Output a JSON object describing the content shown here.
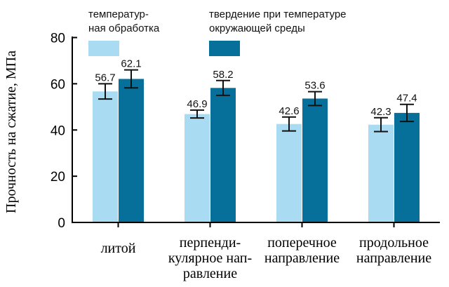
{
  "chart_data": {
    "type": "bar",
    "xlabel": "",
    "ylabel": "Прочность на сжатие, МПа",
    "ylim": [
      0,
      80
    ],
    "yticks": [
      0,
      20,
      40,
      60,
      80
    ],
    "grid": false,
    "legend_position": "top",
    "categories": [
      [
        "литой"
      ],
      [
        "перпенди-",
        "кулярное нап-",
        "равление"
      ],
      [
        "поперечное",
        "направление"
      ],
      [
        "продольное",
        "направление"
      ]
    ],
    "series": [
      {
        "name_lines": [
          "температур-",
          "ная обработка"
        ],
        "color": "#a9dcf3",
        "values": [
          56.7,
          46.9,
          42.6,
          42.3
        ],
        "labels": [
          "56.7",
          "46.9",
          "42.6",
          "42.3"
        ],
        "errors": [
          3.3,
          1.7,
          3.0,
          3.0
        ]
      },
      {
        "name_lines": [
          "твердение при температуре",
          "окружающей среды"
        ],
        "color": "#07709a",
        "values": [
          62.1,
          58.2,
          53.6,
          47.4
        ],
        "labels": [
          "62.1",
          "58.2",
          "53.6",
          "47.4"
        ],
        "errors": [
          3.9,
          3.2,
          3.0,
          3.7
        ]
      }
    ]
  }
}
